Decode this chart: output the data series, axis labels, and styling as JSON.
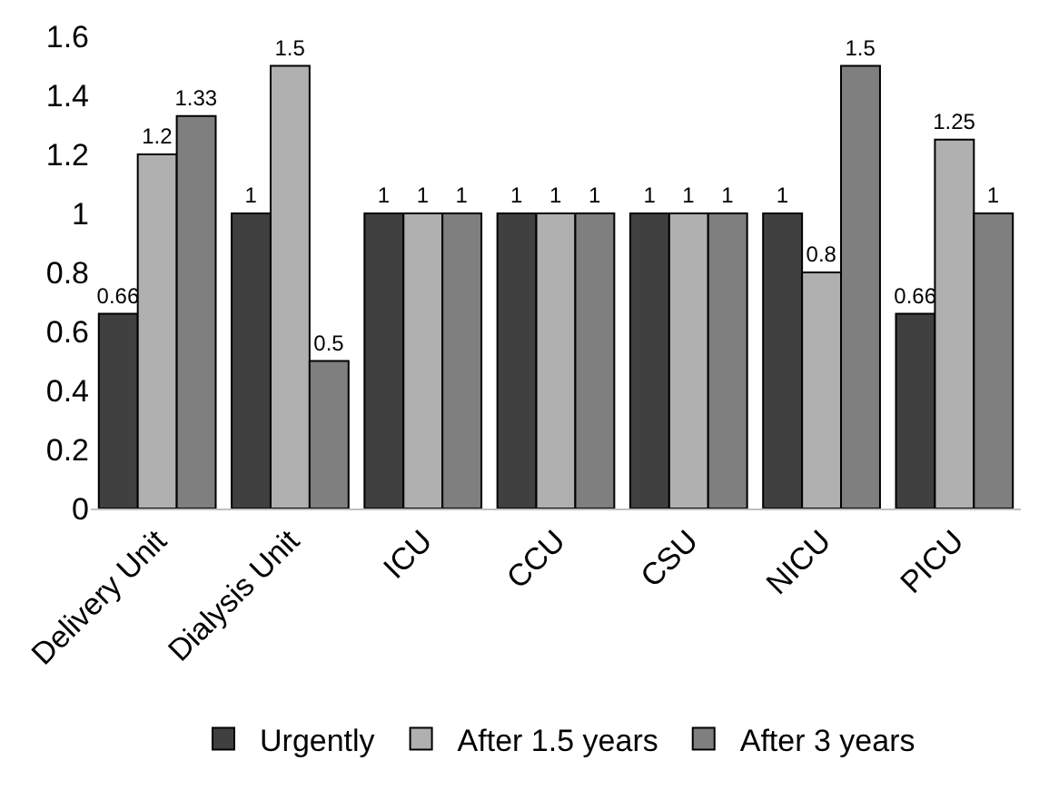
{
  "chart_data": {
    "type": "bar",
    "categories": [
      "Delivery Unit",
      "Dialysis Unit",
      "ICU",
      "CCU",
      "CSU",
      "NICU",
      "PICU"
    ],
    "series": [
      {
        "name": "Urgently",
        "color": "#404040",
        "values": [
          0.66,
          1,
          1,
          1,
          1,
          1,
          0.66
        ]
      },
      {
        "name": "After 1.5 years",
        "color": "#b0b0b0",
        "values": [
          1.2,
          1.5,
          1,
          1,
          1,
          0.8,
          1.25
        ]
      },
      {
        "name": "After 3 years",
        "color": "#7f7f7f",
        "values": [
          1.33,
          0.5,
          1,
          1,
          1,
          1.5,
          1
        ]
      }
    ],
    "ylim": [
      0,
      1.6
    ],
    "yticks": [
      0,
      0.2,
      0.4,
      0.6,
      0.8,
      1,
      1.2,
      1.4,
      1.6
    ],
    "grid": false,
    "legend": "bottom",
    "data_labels": true
  }
}
